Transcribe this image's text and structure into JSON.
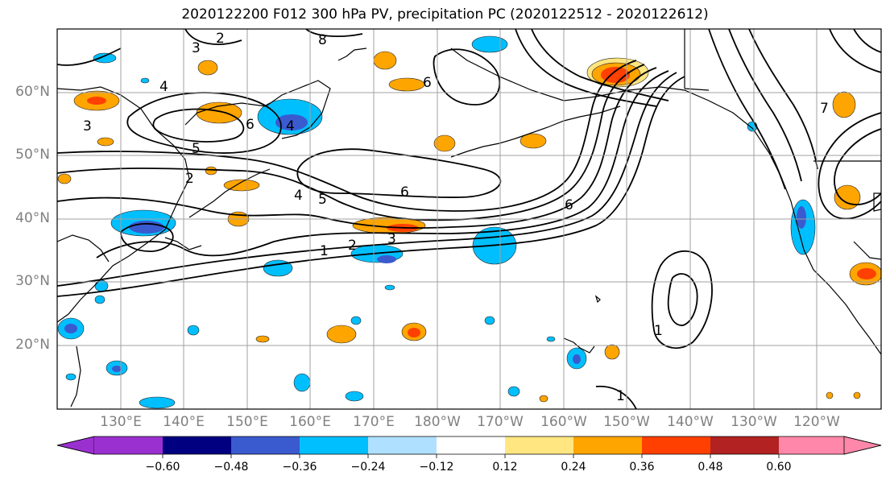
{
  "title": "2020122200 F012 300 hPa PV, precipitation PC (2020122512 - 2020122612)",
  "lat_labels": [
    "60°N",
    "50°N",
    "40°N",
    "30°N",
    "20°N"
  ],
  "lon_labels": [
    "130°E",
    "140°E",
    "150°E",
    "160°E",
    "170°E",
    "180°W",
    "170°W",
    "160°W",
    "150°W",
    "140°W",
    "130°W",
    "120°W"
  ],
  "colorbar": {
    "ticks": [
      "−0.60",
      "−0.48",
      "−0.36",
      "−0.24",
      "−0.12",
      "0.12",
      "0.24",
      "0.36",
      "0.48",
      "0.60"
    ],
    "colors": [
      "#9b30d0",
      "#000080",
      "#3a5ad0",
      "#00bfff",
      "#b0e0ff",
      "#ffffff",
      "#ffe680",
      "#ffa500",
      "#ff4000",
      "#b22222",
      "#ff88aa"
    ]
  },
  "contour_labels": [
    "1",
    "1",
    "1",
    "2",
    "2",
    "2",
    "3",
    "3",
    "3",
    "4",
    "4",
    "4",
    "5",
    "5",
    "6",
    "6",
    "6",
    "6",
    "7",
    "8"
  ],
  "colors": {
    "land_outline": "#000000",
    "grid": "#a0a0a0",
    "contour": "#000000"
  }
}
